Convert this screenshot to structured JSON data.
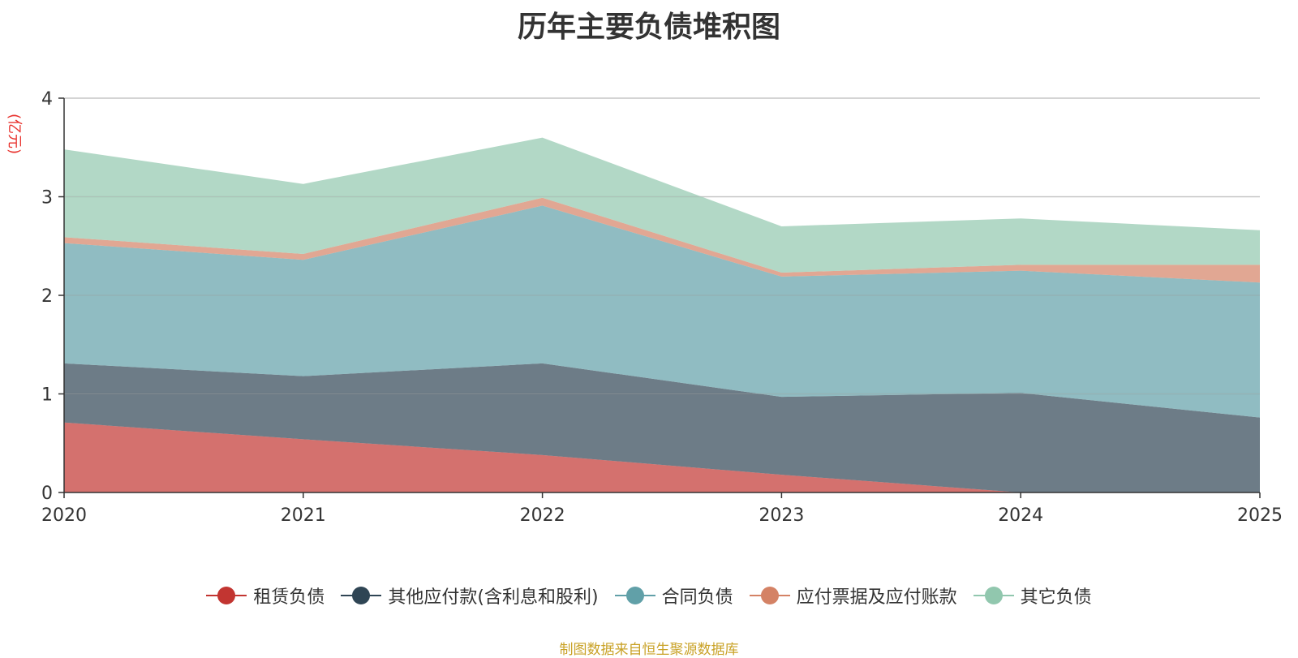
{
  "chart_data": {
    "type": "area",
    "stacked": true,
    "title": "历年主要负债堆积图",
    "unit_label": "(亿元)",
    "categories": [
      "2020",
      "2021",
      "2022",
      "2023",
      "2024",
      "2025"
    ],
    "ylim": [
      0,
      4
    ],
    "yticks": [
      "0",
      "1",
      "2",
      "3",
      "4"
    ],
    "grid": true,
    "legend_position": "bottom",
    "series": [
      {
        "name": "租赁负债",
        "color": "#c23531",
        "values": [
          0.71,
          0.54,
          0.38,
          0.18,
          0.0,
          0.0
        ]
      },
      {
        "name": "其他应付款(含利息和股利)",
        "color": "#2f4554",
        "values": [
          0.6,
          0.64,
          0.93,
          0.79,
          1.01,
          0.76
        ]
      },
      {
        "name": "合同负债",
        "color": "#61a0a8",
        "values": [
          1.22,
          1.18,
          1.6,
          1.22,
          1.24,
          1.37
        ]
      },
      {
        "name": "应付票据及应付账款",
        "color": "#d48265",
        "values": [
          0.06,
          0.06,
          0.08,
          0.04,
          0.06,
          0.18
        ]
      },
      {
        "name": "其它负债",
        "color": "#91c7ae",
        "values": [
          0.89,
          0.71,
          0.61,
          0.47,
          0.47,
          0.35
        ]
      }
    ]
  },
  "source": "制图数据来自恒生聚源数据库"
}
